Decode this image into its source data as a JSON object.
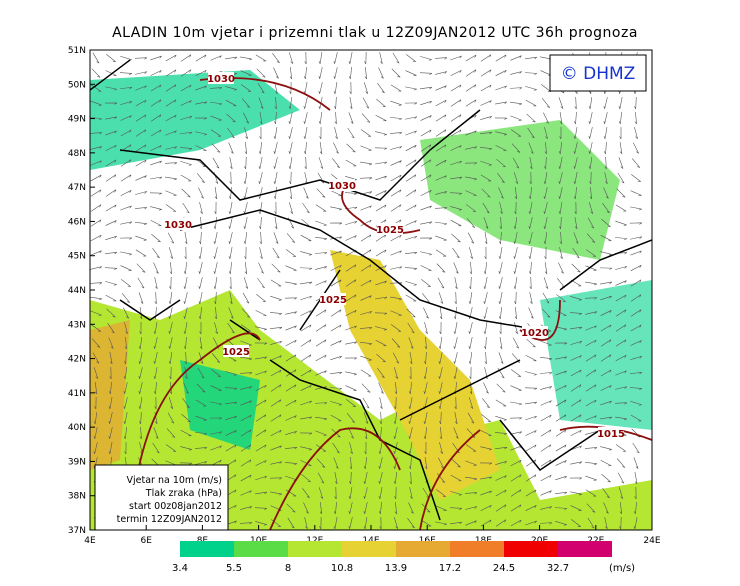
{
  "header": {
    "title": "ALADIN 10m vjetar i prizemni tlak u 12Z09JAN2012 UTC 36h prognoza",
    "logo": "© DHMZ"
  },
  "map": {
    "lat_labels": [
      "51N",
      "50N",
      "49N",
      "48N",
      "47N",
      "46N",
      "45N",
      "44N",
      "43N",
      "42N",
      "41N",
      "40N",
      "39N",
      "38N",
      "37N"
    ],
    "lon_labels": [
      "4E",
      "6E",
      "8E",
      "10E",
      "12E",
      "14E",
      "16E",
      "18E",
      "20E",
      "22E",
      "24E"
    ],
    "isobars": [
      {
        "label": "1030"
      },
      {
        "label": "1030"
      },
      {
        "label": "1030"
      },
      {
        "label": "1025"
      },
      {
        "label": "1025"
      },
      {
        "label": "1025"
      },
      {
        "label": "1020"
      },
      {
        "label": "1015"
      }
    ]
  },
  "info_box": {
    "lines": [
      "Vjetar na 10m (m/s)",
      "Tlak zraka (hPa)",
      "start 00z08jan2012",
      "termin 12Z09JAN2012"
    ]
  },
  "colorbar": {
    "labels": [
      3.4,
      5.5,
      8,
      10.8,
      13.9,
      17.2,
      24.5,
      32.7
    ],
    "unit": "(m/s)",
    "colors": [
      "#00d28c",
      "#5adc46",
      "#b4e632",
      "#e6d232",
      "#e6aa32",
      "#f07d28",
      "#f00000",
      "#d2006e",
      "#a000c8"
    ]
  }
}
